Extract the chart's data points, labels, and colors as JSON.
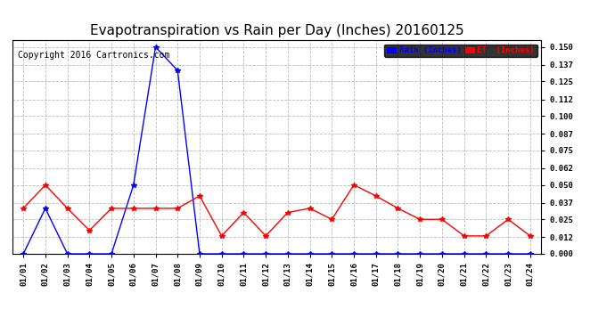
{
  "title": "Evapotranspiration vs Rain per Day (Inches) 20160125",
  "copyright_text": "Copyright 2016 Cartronics.com",
  "x_labels": [
    "01/01",
    "01/02",
    "01/03",
    "01/04",
    "01/05",
    "01/06",
    "01/07",
    "01/08",
    "01/09",
    "01/10",
    "01/11",
    "01/12",
    "01/13",
    "01/14",
    "01/15",
    "01/16",
    "01/17",
    "01/18",
    "01/19",
    "01/20",
    "01/21",
    "01/22",
    "01/23",
    "01/24"
  ],
  "rain_values": [
    0.0,
    0.033,
    0.0,
    0.0,
    0.0,
    0.05,
    0.15,
    0.133,
    0.0,
    0.0,
    0.0,
    0.0,
    0.0,
    0.0,
    0.0,
    0.0,
    0.0,
    0.0,
    0.0,
    0.0,
    0.0,
    0.0,
    0.0,
    0.0
  ],
  "et_values": [
    0.033,
    0.05,
    0.033,
    0.017,
    0.033,
    0.033,
    0.033,
    0.033,
    0.042,
    0.013,
    0.03,
    0.013,
    0.03,
    0.033,
    0.025,
    0.05,
    0.042,
    0.033,
    0.025,
    0.025,
    0.013,
    0.013,
    0.025,
    0.013
  ],
  "rain_color": "#0000FF",
  "et_color": "#FF0000",
  "background_color": "#FFFFFF",
  "grid_color": "#BBBBBB",
  "ylim": [
    0.0,
    0.155
  ],
  "yticks": [
    0.0,
    0.012,
    0.025,
    0.037,
    0.05,
    0.062,
    0.075,
    0.087,
    0.1,
    0.112,
    0.125,
    0.137,
    0.15
  ],
  "title_fontsize": 11,
  "copyright_fontsize": 7,
  "legend_rain_label": "Rain (Inches)",
  "legend_et_label": "ET  (Inches)"
}
